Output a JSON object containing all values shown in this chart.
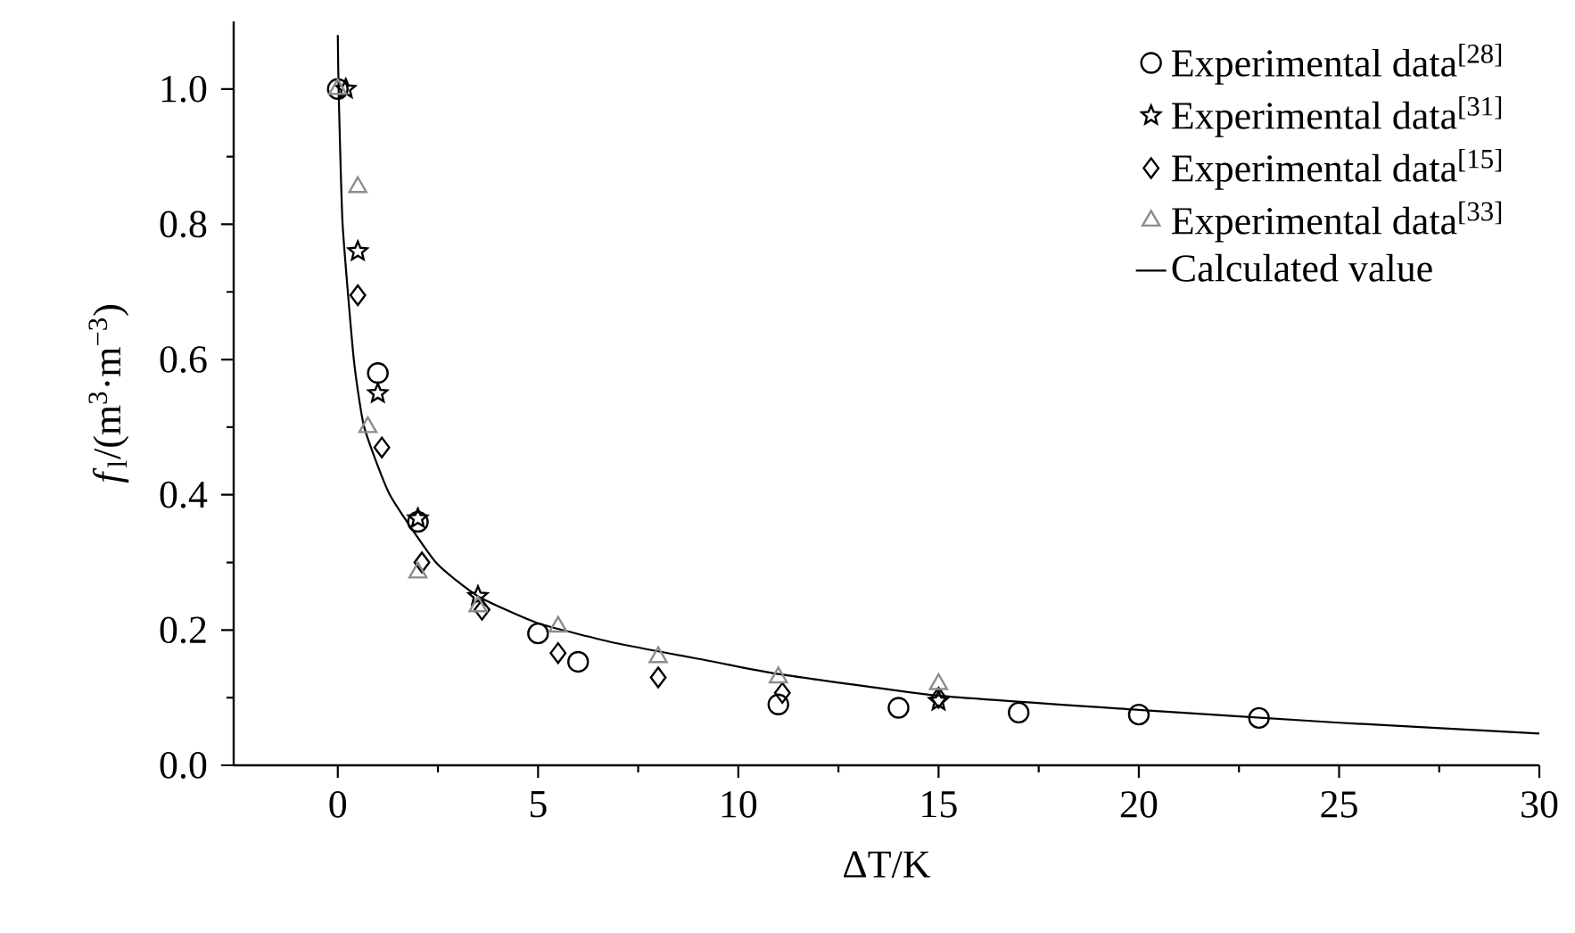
{
  "chart_data": {
    "type": "scatter",
    "xlabel": "ΔT/K",
    "ylabel": "*f*$_{l}$/(m$^{3}$·m$^{−3}$)",
    "xlim": [
      -2.6,
      30
    ],
    "ylim": [
      0,
      1.1
    ],
    "xticks": [
      0,
      5,
      10,
      15,
      20,
      25,
      30
    ],
    "yticks": [
      {
        "value": 0,
        "label": "0.0"
      },
      {
        "value": 0.2,
        "label": "0.2"
      },
      {
        "value": 0.4,
        "label": "0.4"
      },
      {
        "value": 0.6,
        "label": "0.6"
      },
      {
        "value": 0.8,
        "label": "0.8"
      },
      {
        "value": 1.0,
        "label": "1.0"
      }
    ],
    "legend": "top right",
    "series": [
      {
        "name": "Experimental data$^{[28]}$",
        "color": "#000000",
        "marker": "circle",
        "x": [
          0,
          1,
          2,
          5,
          6,
          11,
          14,
          17,
          20,
          23
        ],
        "values": [
          1.0,
          0.58,
          0.36,
          0.195,
          0.153,
          0.09,
          0.085,
          0.078,
          0.075,
          0.07
        ]
      },
      {
        "name": "Experimental data$^{[31]}$",
        "color": "#000000",
        "marker": "star",
        "x": [
          0.2,
          0.5,
          1.0,
          2.0,
          3.5,
          15
        ],
        "values": [
          1.0,
          0.76,
          0.55,
          0.365,
          0.25,
          0.095
        ]
      },
      {
        "name": "Experimental data$^{[15]}$",
        "color": "#000000",
        "marker": "diamond",
        "x": [
          0.5,
          1.1,
          2.1,
          3.6,
          5.5,
          8,
          11.1,
          15
        ],
        "values": [
          0.695,
          0.47,
          0.3,
          0.23,
          0.166,
          0.13,
          0.107,
          0.1
        ]
      },
      {
        "name": "Experimental data$^{[33]}$",
        "color": "#8c8c8c",
        "marker": "triangle",
        "x": [
          0,
          0.5,
          0.75,
          2.0,
          3.5,
          5.5,
          8,
          11,
          15
        ],
        "values": [
          1.0,
          0.855,
          0.5,
          0.285,
          0.235,
          0.205,
          0.16,
          0.13,
          0.12
        ]
      },
      {
        "name": "Calculated value",
        "type": "line",
        "color": "#000000",
        "marker": "none",
        "line_style": "solid",
        "x": [
          0,
          0.02,
          0.12,
          0.4,
          0.66,
          1.3,
          2.45,
          3.5,
          5,
          7,
          9.4,
          11,
          15,
          20,
          25,
          30
        ],
        "values": [
          1.08,
          1.0,
          0.8,
          0.6,
          0.5,
          0.4,
          0.3,
          0.25,
          0.21,
          0.18,
          0.153,
          0.135,
          0.103,
          0.082,
          0.063,
          0.047
        ]
      }
    ]
  }
}
